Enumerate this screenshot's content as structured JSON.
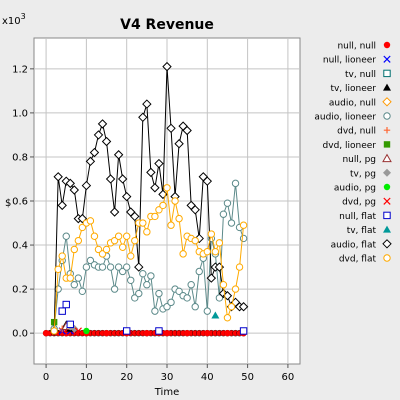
{
  "chart_data": {
    "type": "line",
    "title": "V4 Revenue",
    "xlabel": "Time",
    "ylabel": "$",
    "y_multiplier": "x10^3",
    "xlim": [
      -3,
      63
    ],
    "ylim": [
      -0.14,
      1.34
    ],
    "x_ticks": [
      0,
      10,
      20,
      30,
      40,
      50,
      60
    ],
    "y_ticks": [
      0.0,
      0.2,
      0.4,
      0.6,
      0.8,
      1.0,
      1.2
    ],
    "y_tick_labels": [
      "0.0",
      "0.2",
      "0.4",
      "0.6",
      "0.8",
      "1.0",
      "1.2"
    ],
    "grid": true,
    "legend_position": "right",
    "series": [
      {
        "name": "null, null",
        "color": "#ff0000",
        "marker": "dot",
        "line": false,
        "x": [
          0,
          5,
          10,
          15,
          20,
          25,
          30,
          35,
          40,
          45,
          49
        ],
        "y": [
          0,
          0,
          0,
          0,
          0,
          0,
          0,
          0,
          0,
          0,
          0
        ]
      },
      {
        "name": "null, lioneer",
        "color": "#0000ff",
        "marker": "x",
        "line": false,
        "x": [
          4,
          6
        ],
        "y": [
          0.01,
          0.01
        ]
      },
      {
        "name": "tv, null",
        "color": "#007070",
        "marker": "square",
        "line": false,
        "x": [],
        "y": []
      },
      {
        "name": "tv, lioneer",
        "color": "#000000",
        "marker": "triangle",
        "line": false,
        "x": [
          5,
          6
        ],
        "y": [
          0.04,
          0.02
        ]
      },
      {
        "name": "audio, null",
        "color": "#ff9900",
        "marker": "diamond",
        "line": false,
        "x": [],
        "y": []
      },
      {
        "name": "audio, lioneer",
        "color": "#5c8a8a",
        "marker": "circle",
        "line": true,
        "x": [
          2,
          3,
          4,
          5,
          6,
          7,
          8,
          9,
          10,
          11,
          12,
          13,
          14,
          15,
          16,
          17,
          18,
          19,
          20,
          21,
          22,
          23,
          24,
          25,
          26,
          27,
          28,
          29,
          30,
          31,
          32,
          33,
          34,
          35,
          36,
          37,
          38,
          39,
          40,
          41,
          42,
          43,
          44,
          45,
          46,
          47,
          48,
          49
        ],
        "y": [
          0.02,
          0.2,
          0.33,
          0.44,
          0.27,
          0.22,
          0.25,
          0.19,
          0.3,
          0.33,
          0.31,
          0.3,
          0.3,
          0.35,
          0.3,
          0.2,
          0.3,
          0.28,
          0.3,
          0.24,
          0.16,
          0.18,
          0.27,
          0.22,
          0.26,
          0.1,
          0.18,
          0.11,
          0.12,
          0.14,
          0.2,
          0.19,
          0.17,
          0.16,
          0.22,
          0.12,
          0.28,
          0.34,
          0.1,
          0.43,
          0.36,
          0.16,
          0.54,
          0.59,
          0.5,
          0.68,
          0.48,
          0.43
        ]
      },
      {
        "name": "dvd, null",
        "color": "#ff6633",
        "marker": "plus",
        "line": false,
        "x": [
          4
        ],
        "y": [
          0.02
        ]
      },
      {
        "name": "dvd, lioneer",
        "color": "#339900",
        "marker": "filled-square",
        "line": false,
        "x": [
          2
        ],
        "y": [
          0.05
        ]
      },
      {
        "name": "null, pg",
        "color": "#993333",
        "marker": "open-triangle",
        "line": false,
        "x": [
          5,
          6
        ],
        "y": [
          0.03,
          0.03
        ]
      },
      {
        "name": "tv, pg",
        "color": "#999999",
        "marker": "filled-diamond",
        "line": false,
        "x": [
          6,
          7
        ],
        "y": [
          0.03,
          0.02
        ]
      },
      {
        "name": "audio, pg",
        "color": "#00ee00",
        "marker": "dot",
        "line": false,
        "x": [
          10
        ],
        "y": [
          0.01
        ]
      },
      {
        "name": "dvd, pg",
        "color": "#ff0000",
        "marker": "x",
        "line": false,
        "x": [
          8
        ],
        "y": [
          0.01
        ]
      },
      {
        "name": "null, flat",
        "color": "#0000cc",
        "marker": "square",
        "line": false,
        "x": [
          4,
          5,
          6,
          20,
          28,
          49
        ],
        "y": [
          0.1,
          0.13,
          0.04,
          0.01,
          0.01,
          0.01
        ]
      },
      {
        "name": "tv, flat",
        "color": "#009999",
        "marker": "filled-triangle",
        "line": false,
        "x": [
          42
        ],
        "y": [
          0.08
        ]
      },
      {
        "name": "audio, flat",
        "color": "#000000",
        "marker": "diamond",
        "line": true,
        "x": [
          2,
          3,
          4,
          5,
          6,
          7,
          8,
          9,
          10,
          11,
          12,
          13,
          14,
          15,
          16,
          17,
          18,
          19,
          20,
          21,
          22,
          23,
          24,
          25,
          26,
          27,
          28,
          29,
          30,
          31,
          32,
          33,
          34,
          35,
          36,
          37,
          38,
          39,
          40,
          41,
          42,
          43,
          44,
          45,
          46,
          47,
          48,
          49
        ],
        "y": [
          0.01,
          0.71,
          0.58,
          0.69,
          0.68,
          0.65,
          0.52,
          0.52,
          0.67,
          0.78,
          0.82,
          0.9,
          0.95,
          0.87,
          0.7,
          0.55,
          0.81,
          0.7,
          0.62,
          0.55,
          0.53,
          0.3,
          0.98,
          1.04,
          0.73,
          0.66,
          0.77,
          0.63,
          1.21,
          0.93,
          0.62,
          0.86,
          0.94,
          0.92,
          0.58,
          0.56,
          0.43,
          0.71,
          0.69,
          0.25,
          0.3,
          0.3,
          0.18,
          0.17,
          0.12,
          0.14,
          0.12,
          0.12
        ]
      },
      {
        "name": "dvd, flat",
        "color": "#ffaa00",
        "marker": "circle",
        "line": true,
        "x": [
          2,
          3,
          4,
          5,
          6,
          7,
          8,
          9,
          10,
          11,
          12,
          13,
          14,
          15,
          16,
          17,
          18,
          19,
          20,
          21,
          22,
          23,
          24,
          25,
          26,
          27,
          28,
          29,
          30,
          31,
          32,
          33,
          34,
          35,
          36,
          37,
          38,
          39,
          40,
          41,
          42,
          43,
          44,
          45,
          46,
          47,
          48,
          49
        ],
        "y": [
          0.01,
          0.29,
          0.35,
          0.25,
          0.25,
          0.38,
          0.42,
          0.48,
          0.5,
          0.51,
          0.44,
          0.38,
          0.36,
          0.38,
          0.41,
          0.42,
          0.44,
          0.39,
          0.44,
          0.35,
          0.42,
          0.5,
          0.5,
          0.46,
          0.53,
          0.53,
          0.56,
          0.58,
          0.66,
          0.49,
          0.6,
          0.52,
          0.36,
          0.44,
          0.43,
          0.42,
          0.37,
          0.36,
          0.37,
          0.45,
          0.37,
          0.41,
          0.22,
          0.07,
          0.12,
          0.2,
          0.3,
          0.49
        ]
      }
    ]
  }
}
